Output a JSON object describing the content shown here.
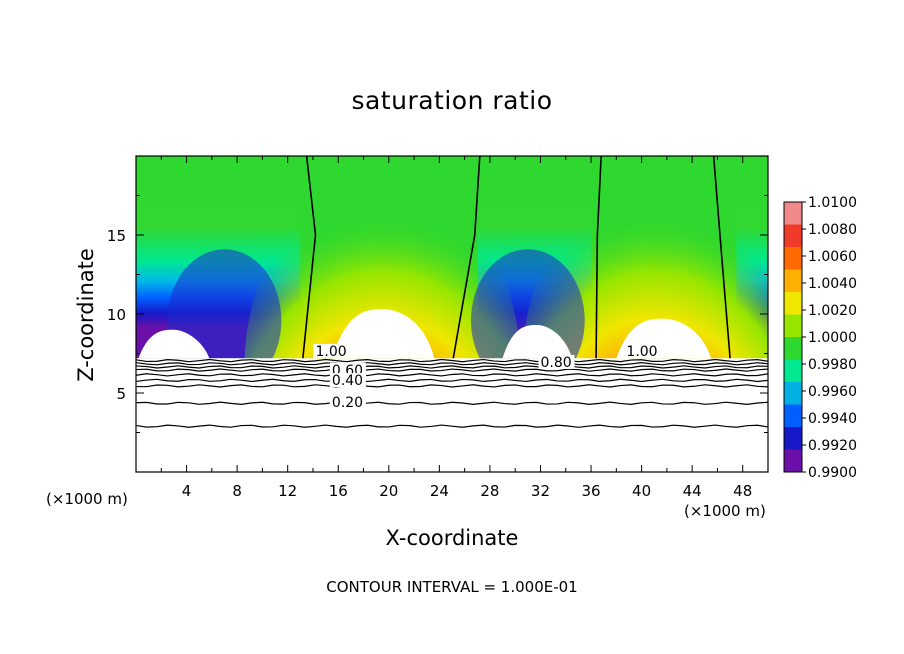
{
  "chart_data": {
    "type": "heatmap",
    "title": "saturation ratio",
    "xlabel": "X-coordinate",
    "ylabel": "Z-coordinate",
    "x_unit_label": "(×1000 m)",
    "footer": "CONTOUR INTERVAL = 1.000E-01",
    "xlim": [
      0,
      50
    ],
    "ylim": [
      0,
      20
    ],
    "x_ticks": [
      4,
      8,
      12,
      16,
      20,
      24,
      28,
      32,
      36,
      40,
      44,
      48
    ],
    "y_ticks": [
      5,
      10,
      15
    ],
    "colorbar": {
      "labels": [
        "1.0100",
        "1.0080",
        "1.0060",
        "1.0040",
        "1.0020",
        "1.0000",
        "0.9980",
        "0.9960",
        "0.9940",
        "0.9920",
        "0.9900"
      ],
      "colors": [
        "#f08a8a",
        "#f03a2a",
        "#ff6a00",
        "#ffb000",
        "#f0e600",
        "#96e600",
        "#2ed82e",
        "#00e890",
        "#00b0e0",
        "#0060ff",
        "#1818c8",
        "#6a10a8"
      ]
    },
    "contours": [
      {
        "label": "1.00",
        "x": 14.2,
        "y": 7.35
      },
      {
        "label": "0.80",
        "x": 32.0,
        "y": 6.65
      },
      {
        "label": "0.60",
        "x": 15.5,
        "y": 6.15
      },
      {
        "label": "0.40",
        "x": 15.5,
        "y": 5.5
      },
      {
        "label": "0.20",
        "x": 15.5,
        "y": 4.1
      },
      {
        "label": "1.00",
        "x": 38.8,
        "y": 7.35
      }
    ],
    "contour_levels_y": [
      7.05,
      6.85,
      6.65,
      6.45,
      6.15,
      5.8,
      5.45,
      4.35,
      2.9
    ],
    "unity_lines_x": [
      [
        13.5,
        14.2,
        13.2
      ],
      [
        27.2,
        26.8,
        25.1
      ],
      [
        36.8,
        36.5,
        36.4
      ],
      [
        45.7,
        46.2,
        47.0
      ]
    ],
    "cloud_base_z": 7.2
  }
}
